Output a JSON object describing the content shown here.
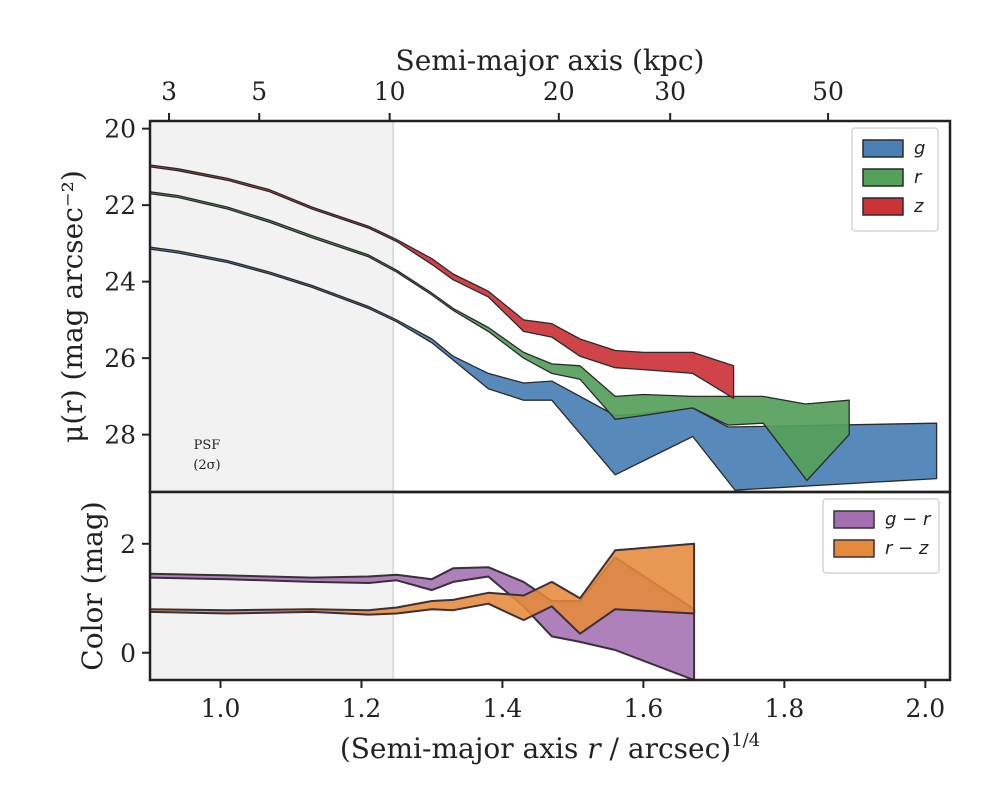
{
  "figure": {
    "top_axis_title": "Semi-major axis (kpc)",
    "psf_note_line1": "PSF",
    "psf_note_line2": "(2σ)"
  },
  "chart_data": [
    {
      "type": "area",
      "panel": "surface-brightness",
      "ylabel": "μ(r) (mag arcsec⁻²)",
      "top_xlabel": "Semi-major axis (kpc)",
      "xlim": [
        0.9,
        2.035
      ],
      "ylim": [
        29.5,
        19.8
      ],
      "y_inverted": true,
      "yticks": [
        20,
        22,
        24,
        26,
        28
      ],
      "top_ticks": [
        {
          "label": "3",
          "x": 0.927
        },
        {
          "label": "5",
          "x": 1.055
        },
        {
          "label": "10",
          "x": 1.24
        },
        {
          "label": "20",
          "x": 1.48
        },
        {
          "label": "30",
          "x": 1.638
        },
        {
          "label": "50",
          "x": 1.862
        }
      ],
      "psf_region": [
        0.9,
        1.245
      ],
      "legend": {
        "position": "top-right",
        "entries": [
          "g",
          "r",
          "z"
        ]
      },
      "colors": {
        "g": "#4a7fb5",
        "r": "#55a05a",
        "z": "#cc3338"
      },
      "series": [
        {
          "name": "g",
          "upper": [
            [
              0.9,
              23.1
            ],
            [
              0.94,
              23.2
            ],
            [
              1.01,
              23.45
            ],
            [
              1.07,
              23.75
            ],
            [
              1.13,
              24.1
            ],
            [
              1.21,
              24.65
            ],
            [
              1.25,
              25.0
            ],
            [
              1.3,
              25.5
            ],
            [
              1.33,
              25.95
            ],
            [
              1.38,
              26.4
            ],
            [
              1.43,
              26.65
            ],
            [
              1.47,
              26.6
            ],
            [
              1.56,
              27.5
            ],
            [
              1.6,
              27.45
            ],
            [
              1.67,
              27.3
            ],
            [
              1.72,
              27.8
            ],
            [
              2.016,
              27.7
            ]
          ],
          "lower": [
            [
              0.9,
              23.15
            ],
            [
              0.94,
              23.25
            ],
            [
              1.01,
              23.5
            ],
            [
              1.07,
              23.8
            ],
            [
              1.13,
              24.15
            ],
            [
              1.21,
              24.7
            ],
            [
              1.25,
              25.05
            ],
            [
              1.3,
              25.6
            ],
            [
              1.33,
              26.05
            ],
            [
              1.38,
              26.8
            ],
            [
              1.43,
              27.1
            ],
            [
              1.47,
              27.1
            ],
            [
              1.56,
              29.05
            ],
            [
              1.67,
              28.05
            ],
            [
              1.73,
              29.45
            ],
            [
              2.016,
              29.15
            ]
          ]
        },
        {
          "name": "r",
          "upper": [
            [
              0.9,
              21.65
            ],
            [
              0.94,
              21.75
            ],
            [
              1.01,
              22.05
            ],
            [
              1.07,
              22.4
            ],
            [
              1.13,
              22.8
            ],
            [
              1.21,
              23.3
            ],
            [
              1.25,
              23.7
            ],
            [
              1.3,
              24.3
            ],
            [
              1.33,
              24.7
            ],
            [
              1.38,
              25.2
            ],
            [
              1.43,
              25.85
            ],
            [
              1.47,
              26.15
            ],
            [
              1.51,
              26.2
            ],
            [
              1.56,
              27.0
            ],
            [
              1.6,
              26.95
            ],
            [
              1.67,
              27.0
            ],
            [
              1.77,
              27.0
            ],
            [
              1.83,
              27.2
            ],
            [
              1.892,
              27.1
            ]
          ],
          "lower": [
            [
              0.9,
              21.7
            ],
            [
              0.94,
              21.8
            ],
            [
              1.01,
              22.1
            ],
            [
              1.07,
              22.45
            ],
            [
              1.13,
              22.85
            ],
            [
              1.21,
              23.35
            ],
            [
              1.25,
              23.75
            ],
            [
              1.3,
              24.35
            ],
            [
              1.33,
              24.75
            ],
            [
              1.38,
              25.3
            ],
            [
              1.43,
              26.0
            ],
            [
              1.47,
              26.4
            ],
            [
              1.51,
              26.55
            ],
            [
              1.56,
              27.6
            ],
            [
              1.6,
              27.5
            ],
            [
              1.67,
              27.3
            ],
            [
              1.72,
              27.75
            ],
            [
              1.77,
              27.7
            ],
            [
              1.832,
              29.2
            ],
            [
              1.892,
              28.0
            ]
          ]
        },
        {
          "name": "z",
          "upper": [
            [
              0.9,
              20.95
            ],
            [
              0.94,
              21.05
            ],
            [
              1.01,
              21.3
            ],
            [
              1.07,
              21.6
            ],
            [
              1.13,
              22.05
            ],
            [
              1.21,
              22.55
            ],
            [
              1.25,
              22.9
            ],
            [
              1.3,
              23.4
            ],
            [
              1.33,
              23.8
            ],
            [
              1.38,
              24.25
            ],
            [
              1.43,
              25.0
            ],
            [
              1.47,
              25.1
            ],
            [
              1.51,
              25.5
            ],
            [
              1.56,
              25.8
            ],
            [
              1.6,
              25.85
            ],
            [
              1.67,
              25.85
            ],
            [
              1.728,
              26.2
            ]
          ],
          "lower": [
            [
              0.9,
              21.0
            ],
            [
              0.94,
              21.1
            ],
            [
              1.01,
              21.35
            ],
            [
              1.07,
              21.65
            ],
            [
              1.13,
              22.1
            ],
            [
              1.21,
              22.6
            ],
            [
              1.25,
              22.95
            ],
            [
              1.3,
              23.55
            ],
            [
              1.33,
              23.95
            ],
            [
              1.38,
              24.4
            ],
            [
              1.43,
              25.3
            ],
            [
              1.47,
              25.45
            ],
            [
              1.51,
              25.95
            ],
            [
              1.56,
              26.25
            ],
            [
              1.6,
              26.3
            ],
            [
              1.67,
              26.4
            ],
            [
              1.728,
              27.05
            ]
          ]
        }
      ]
    },
    {
      "type": "area",
      "panel": "color",
      "xlabel": "(Semi-major axis r / arcsec)^1/4",
      "ylabel": "Color (mag)",
      "xlim": [
        0.9,
        2.035
      ],
      "ylim": [
        -0.5,
        2.95
      ],
      "xticks": [
        1.0,
        1.2,
        1.4,
        1.6,
        1.8,
        2.0
      ],
      "xtick_labels": [
        "1.0",
        "1.2",
        "1.4",
        "1.6",
        "1.8",
        "2.0"
      ],
      "yticks": [
        0,
        2
      ],
      "legend": {
        "position": "top-right",
        "entries": [
          "g − r",
          "r − z"
        ]
      },
      "colors": {
        "g-r": "#a46fb0",
        "r-z": "#e58a3a"
      },
      "series": [
        {
          "name": "g − r",
          "upper": [
            [
              0.9,
              1.45
            ],
            [
              1.01,
              1.42
            ],
            [
              1.13,
              1.38
            ],
            [
              1.21,
              1.4
            ],
            [
              1.25,
              1.43
            ],
            [
              1.3,
              1.35
            ],
            [
              1.33,
              1.55
            ],
            [
              1.38,
              1.57
            ],
            [
              1.43,
              1.3
            ],
            [
              1.47,
              0.95
            ],
            [
              1.51,
              0.95
            ],
            [
              1.56,
              1.75
            ],
            [
              1.672,
              0.8
            ]
          ],
          "lower": [
            [
              0.9,
              1.38
            ],
            [
              1.01,
              1.35
            ],
            [
              1.13,
              1.3
            ],
            [
              1.21,
              1.28
            ],
            [
              1.25,
              1.33
            ],
            [
              1.3,
              1.15
            ],
            [
              1.33,
              1.3
            ],
            [
              1.38,
              1.4
            ],
            [
              1.43,
              0.85
            ],
            [
              1.47,
              0.3
            ],
            [
              1.51,
              0.2
            ],
            [
              1.56,
              0.05
            ],
            [
              1.672,
              -0.5
            ]
          ]
        },
        {
          "name": "r − z",
          "upper": [
            [
              0.9,
              0.8
            ],
            [
              1.01,
              0.78
            ],
            [
              1.13,
              0.8
            ],
            [
              1.21,
              0.78
            ],
            [
              1.25,
              0.83
            ],
            [
              1.3,
              0.95
            ],
            [
              1.33,
              0.97
            ],
            [
              1.38,
              1.1
            ],
            [
              1.43,
              1.05
            ],
            [
              1.47,
              1.3
            ],
            [
              1.51,
              1.0
            ],
            [
              1.56,
              1.88
            ],
            [
              1.672,
              2.0
            ]
          ],
          "lower": [
            [
              0.9,
              0.75
            ],
            [
              1.01,
              0.72
            ],
            [
              1.13,
              0.75
            ],
            [
              1.21,
              0.7
            ],
            [
              1.25,
              0.72
            ],
            [
              1.3,
              0.8
            ],
            [
              1.33,
              0.78
            ],
            [
              1.38,
              0.9
            ],
            [
              1.43,
              0.6
            ],
            [
              1.47,
              0.85
            ],
            [
              1.51,
              0.35
            ],
            [
              1.56,
              0.8
            ],
            [
              1.672,
              0.72
            ]
          ]
        }
      ]
    }
  ]
}
